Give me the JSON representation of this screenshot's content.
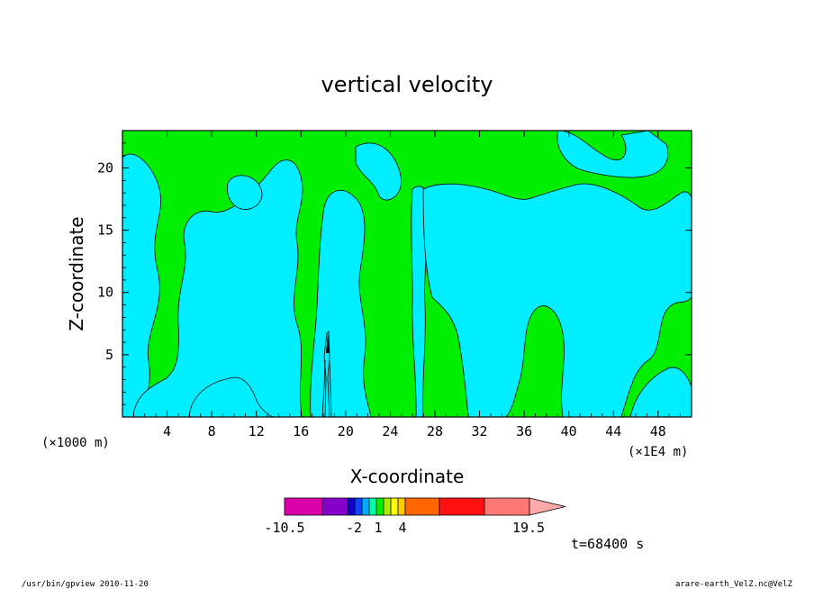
{
  "chart_data": {
    "type": "heatmap",
    "title": "vertical velocity",
    "xlabel": "X-coordinate",
    "ylabel": "Z-coordinate",
    "x_unit_left": "(×1000 m)",
    "x_unit_right": "(×1E4 m)",
    "x_ticks": [
      "4",
      "8",
      "12",
      "16",
      "20",
      "24",
      "28",
      "32",
      "36",
      "40",
      "44",
      "48"
    ],
    "y_ticks": [
      "5",
      "10",
      "15",
      "20"
    ],
    "xlim": [
      0,
      51
    ],
    "ylim": [
      0,
      23
    ],
    "colorbar": {
      "labels": [
        "-10.5",
        "-2",
        "1",
        "4",
        "19.5"
      ],
      "colors": [
        "#dd00aa",
        "#8800cc",
        "#1100cc",
        "#1144ff",
        "#00aaff",
        "#00ffaa",
        "#00ee00",
        "#aaee00",
        "#ffff00",
        "#ffcc00",
        "#ff6600",
        "#ff1111",
        "#ff7777",
        "#ffaaaa"
      ]
    },
    "dominant_levels": [
      {
        "name": "positive",
        "color": "#00ee00"
      },
      {
        "name": "negative",
        "color": "#00eeff"
      }
    ],
    "time_label": "t=68400 s"
  },
  "footer": {
    "left": "/usr/bin/gpview   2010-11-20",
    "right": "arare-earth_VelZ.nc@VelZ"
  }
}
